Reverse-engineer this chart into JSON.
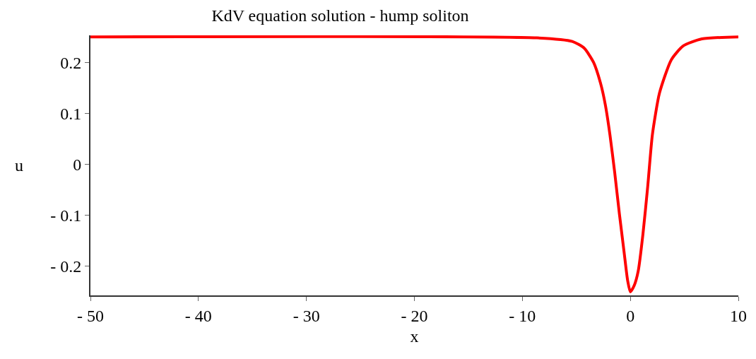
{
  "chart_data": {
    "type": "line",
    "title": "KdV equation solution - hump soliton",
    "xlabel": "x",
    "ylabel": "u",
    "x": [
      -50,
      -8.65,
      -5.38,
      -4.28,
      -3.41,
      -2.76,
      -2.32,
      -1.89,
      -1.45,
      -1.01,
      -0.58,
      -0.25,
      0,
      0.35,
      0.73,
      1.17,
      1.61,
      2.04,
      2.7,
      3.79,
      4.88,
      6.62,
      10
    ],
    "series": [
      {
        "color": "#ff0000",
        "values": [
          0.25,
          0.248,
          0.241,
          0.228,
          0.2,
          0.159,
          0.117,
          0.058,
          -0.016,
          -0.098,
          -0.172,
          -0.228,
          -0.25,
          -0.238,
          -0.209,
          -0.136,
          -0.043,
          0.058,
          0.14,
          0.205,
          0.232,
          0.246,
          0.25
        ]
      }
    ],
    "xlim": [
      -50,
      10
    ],
    "xticks": [
      -50,
      -40,
      -30,
      -20,
      -10,
      0,
      10
    ],
    "ylim": [
      -0.257,
      0.253
    ],
    "yticks": [
      -0.2,
      -0.1,
      0,
      0.1,
      0.2
    ],
    "marker": "none",
    "line_style": "solid"
  }
}
